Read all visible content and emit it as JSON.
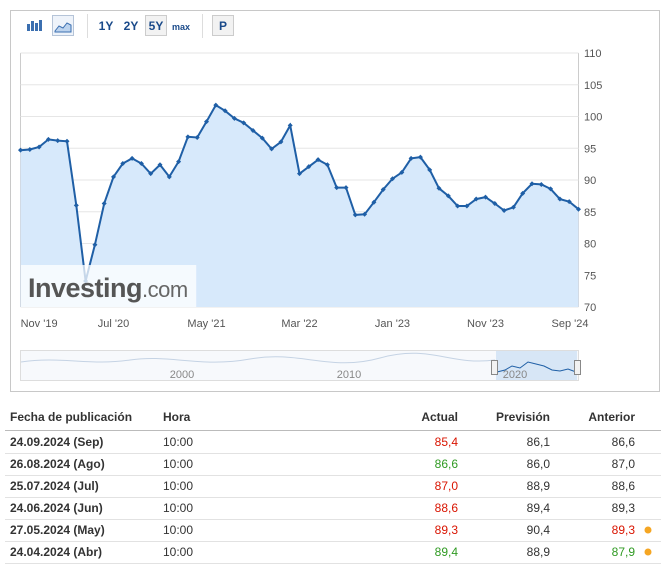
{
  "toolbar": {
    "ranges": [
      "1Y",
      "2Y",
      "5Y",
      "max"
    ],
    "active_index": 2,
    "p_button": "P"
  },
  "chart_data": {
    "type": "line",
    "categories": [
      null,
      null,
      "Nov '19",
      null,
      null,
      null,
      null,
      null,
      null,
      null,
      "Jul '20",
      null,
      null,
      null,
      null,
      null,
      null,
      null,
      null,
      null,
      "May '21",
      null,
      null,
      null,
      null,
      null,
      null,
      null,
      null,
      null,
      "Mar '22",
      null,
      null,
      null,
      null,
      null,
      null,
      null,
      null,
      null,
      "Jan '23",
      null,
      null,
      null,
      null,
      null,
      null,
      null,
      null,
      null,
      "Nov '23",
      null,
      null,
      null,
      null,
      null,
      null,
      null,
      null,
      null,
      "Sep '24"
    ],
    "values": [
      94.7,
      94.8,
      95.2,
      96.4,
      96.2,
      96.1,
      86.0,
      74.1,
      79.8,
      86.3,
      90.5,
      92.6,
      93.4,
      92.6,
      91.0,
      92.4,
      90.5,
      92.9,
      96.8,
      96.7,
      99.2,
      101.8,
      100.9,
      99.7,
      99.0,
      97.8,
      96.6,
      94.9,
      96.0,
      98.6,
      91.0,
      92.1,
      93.2,
      92.4,
      88.8,
      88.8,
      84.5,
      84.6,
      86.5,
      88.5,
      90.2,
      91.2,
      93.4,
      93.6,
      91.6,
      88.7,
      87.5,
      85.9,
      85.9,
      87.0,
      87.3,
      86.3,
      85.2,
      85.7,
      87.9,
      89.4,
      89.3,
      88.6,
      87.0,
      86.6,
      85.4
    ],
    "color": "#1f5fa6",
    "area_color": "#d7e9fb",
    "ylim": [
      70,
      110
    ],
    "yticks": [
      70,
      75,
      80,
      85,
      90,
      95,
      100,
      105,
      110
    ],
    "grid": true,
    "watermark": {
      "brand": "Investing",
      "suffix": ".com"
    }
  },
  "navigator": {
    "labels": [
      "2000",
      "2010",
      "2020"
    ]
  },
  "table": {
    "headers": [
      "Fecha de publicación",
      "Hora",
      "Actual",
      "Previsión",
      "Anterior"
    ],
    "rows": [
      {
        "cells": [
          "24.09.2024 (Sep)",
          "10:00",
          "85,4",
          "86,1",
          "86,6"
        ],
        "actual_color": "#d91400",
        "previous_color": "#333333"
      },
      {
        "cells": [
          "26.08.2024 (Ago)",
          "10:00",
          "86,6",
          "86,0",
          "87,0"
        ],
        "actual_color": "#2f9a22",
        "previous_color": "#333333"
      },
      {
        "cells": [
          "25.07.2024 (Jul)",
          "10:00",
          "87,0",
          "88,9",
          "88,6"
        ],
        "actual_color": "#d91400",
        "previous_color": "#333333"
      },
      {
        "cells": [
          "24.06.2024 (Jun)",
          "10:00",
          "88,6",
          "89,4",
          "89,3"
        ],
        "actual_color": "#d91400",
        "previous_color": "#333333"
      },
      {
        "cells": [
          "27.05.2024 (May)",
          "10:00",
          "89,3",
          "90,4",
          "89,3"
        ],
        "actual_color": "#d91400",
        "previous_color": "#d91400",
        "marker_color": "#f5a623"
      },
      {
        "cells": [
          "24.04.2024 (Abr)",
          "10:00",
          "89,4",
          "88,9",
          "87,9"
        ],
        "actual_color": "#2f9a22",
        "previous_color": "#2f9a22",
        "marker_color": "#f5a623"
      }
    ]
  }
}
